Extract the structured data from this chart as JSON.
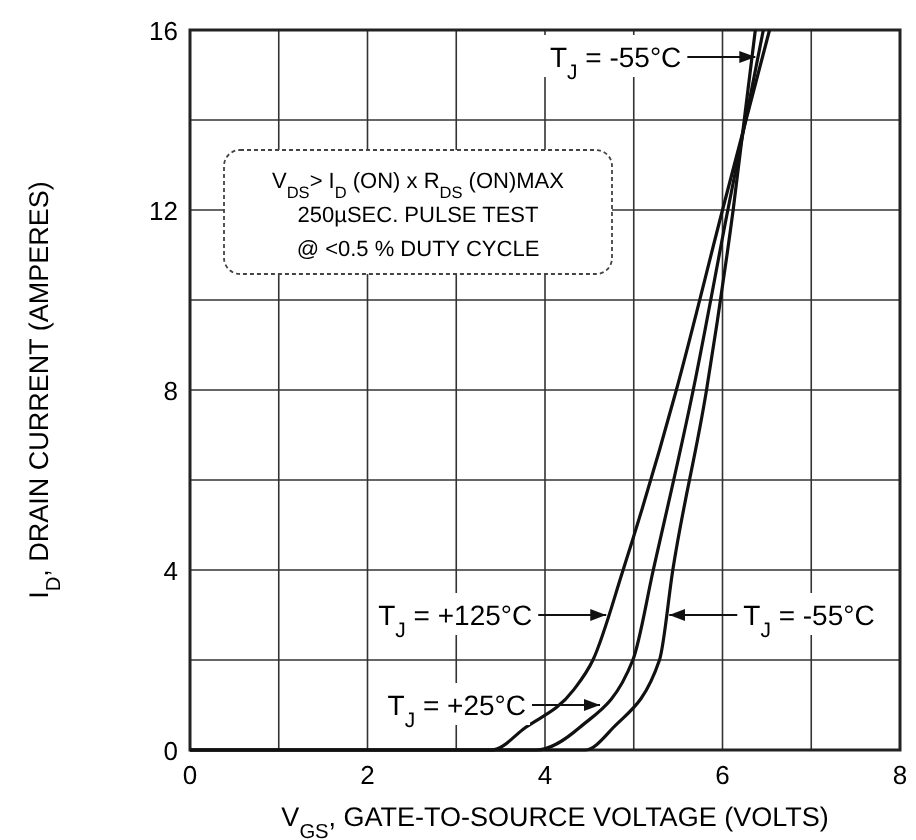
{
  "chart_data": {
    "type": "line",
    "xlabel": "V$_{GS}$, GATE-TO-SOURCE VOLTAGE (VOLTS)",
    "ylabel": "I$_{D}$, DRAIN CURRENT (AMPERES)",
    "xlim": [
      0,
      8
    ],
    "ylim": [
      0,
      16
    ],
    "xticks": [
      0,
      {
        "value": 1,
        "label": null
      },
      2,
      {
        "value": 3,
        "label": null
      },
      4,
      {
        "value": 5,
        "label": null
      },
      6,
      {
        "value": 7,
        "label": null
      },
      8
    ],
    "yticks": [
      0,
      {
        "value": 2,
        "label": null
      },
      4,
      {
        "value": 6,
        "label": null
      },
      8,
      {
        "value": 10,
        "label": null
      },
      12,
      {
        "value": 14,
        "label": null
      },
      16
    ],
    "grid": true,
    "series": [
      {
        "color": "#111111",
        "x": [
          0,
          3.4,
          3.78,
          4.32,
          4.54,
          4.88,
          5.48,
          6.0,
          6.53
        ],
        "values": [
          0,
          0,
          0.5,
          1.33,
          2,
          4,
          8,
          12,
          16
        ]
      },
      {
        "color": "#111111",
        "x": [
          0,
          3.9,
          4.39,
          4.99,
          5.22,
          5.67,
          6.06,
          6.46
        ],
        "values": [
          0,
          0,
          0.5,
          2,
          4,
          8,
          12,
          16
        ]
      },
      {
        "color": "#111111",
        "x": [
          0,
          4.45,
          4.77,
          5.29,
          5.44,
          5.82,
          6.12,
          6.37
        ],
        "values": [
          0,
          0,
          0.5,
          2,
          4,
          8,
          12,
          16
        ]
      }
    ],
    "annotations": [
      {
        "text": "T$_{J}$ = -55°C",
        "x": 6.37,
        "y": 15.4
      },
      {
        "text": "T$_{J}$ = +125°C",
        "x": 4.69,
        "y": 3
      },
      {
        "text": "T$_{J}$ = +25°C",
        "x": 4.62,
        "y": 1
      },
      {
        "text": "T$_{J}$ = -55°C",
        "x": 5.4,
        "y": 3
      },
      "V$_{DS}$> I$_{D}$ (ON) x R$_{DS}$ (ON)MAX",
      "250µSEC. PULSE TEST",
      "@ <0.5 % DUTY CYCLE"
    ]
  }
}
